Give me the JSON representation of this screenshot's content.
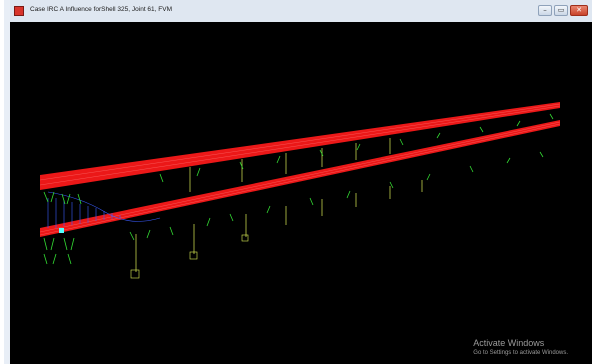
{
  "window": {
    "title": "Case IRC A Influence forShell 325, Joint 61, FVM",
    "controls": {
      "minimize": "–",
      "maximize": "▭",
      "close": "✕"
    }
  },
  "watermark": {
    "line1": "Activate Windows",
    "line2": "Go to Settings to activate Windows."
  },
  "colors": {
    "deck": "#ff1a1a",
    "support": "#33dd33",
    "pier": "#ddee55",
    "influence": "#3a5cff",
    "background": "#000000"
  }
}
